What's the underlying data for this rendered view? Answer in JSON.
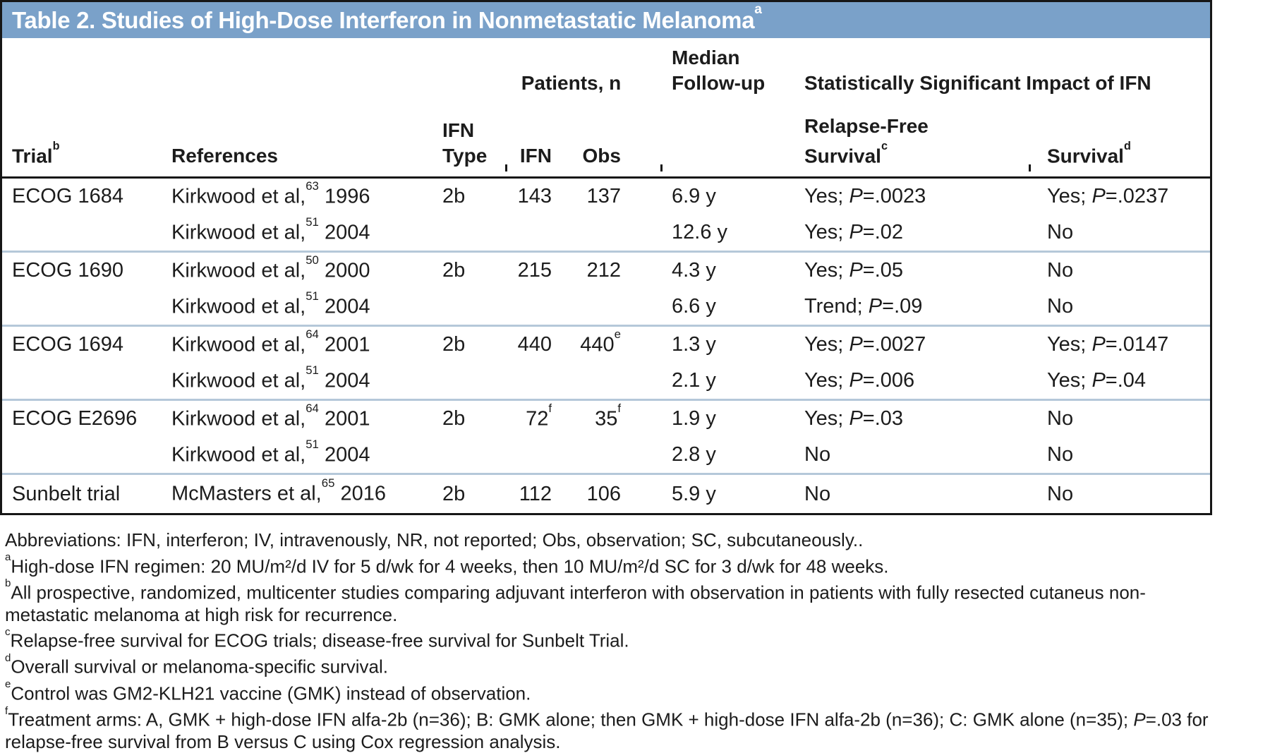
{
  "colors": {
    "title_bar_blue": "#7aa1c9",
    "border_black": "#161616",
    "row_divider_blue": "#b5c8d9",
    "text_ink": "#1c1c1c",
    "title_text": "#ffffff"
  },
  "title": {
    "text": "Table 2. Studies of High-Dose Interferon in Nonmetastatic Melanoma",
    "sup": "a"
  },
  "table": {
    "group_headers": {
      "patients": "Patients, n",
      "impact": "Statistically Significant Impact of IFN"
    },
    "columns": {
      "trial": {
        "label": "Trial",
        "sup": "b"
      },
      "references": {
        "label": "References"
      },
      "ifn_type": {
        "line1": "IFN",
        "line2": "Type"
      },
      "ifn_n": {
        "label": "IFN"
      },
      "obs_n": {
        "label": "Obs"
      },
      "median_followup": {
        "line1": "Median",
        "line2": "Follow-up"
      },
      "relapse_free": {
        "line1": "Relapse-Free",
        "line2": "Survival",
        "sup": "c"
      },
      "survival": {
        "label": "Survival",
        "sup": "d"
      }
    },
    "groups": [
      {
        "trial": "ECOG 1684",
        "entries": [
          {
            "reference": {
              "text": "Kirkwood et al,",
              "sup": "63",
              "year": "1996"
            },
            "ifn_type": "2b",
            "ifn_n": {
              "t": "143",
              "sup": ""
            },
            "obs_n": {
              "t": "137",
              "sup": ""
            },
            "followup": "6.9 y",
            "rfs": {
              "label": "Yes; ",
              "p": "P",
              "v": "=.0023"
            },
            "os": {
              "label": "Yes; ",
              "p": "P",
              "v": "=.0237"
            }
          },
          {
            "reference": {
              "text": "Kirkwood et al,",
              "sup": "51",
              "year": "2004"
            },
            "ifn_type": "",
            "ifn_n": null,
            "obs_n": null,
            "followup": "12.6 y",
            "rfs": {
              "label": "Yes; ",
              "p": "P",
              "v": "=.02"
            },
            "os": {
              "label": "No"
            }
          }
        ]
      },
      {
        "trial": "ECOG 1690",
        "entries": [
          {
            "reference": {
              "text": "Kirkwood et al,",
              "sup": "50",
              "year": "2000"
            },
            "ifn_type": "2b",
            "ifn_n": {
              "t": "215",
              "sup": ""
            },
            "obs_n": {
              "t": "212",
              "sup": ""
            },
            "followup": "4.3 y",
            "rfs": {
              "label": "Yes; ",
              "p": "P",
              "v": "=.05"
            },
            "os": {
              "label": "No"
            }
          },
          {
            "reference": {
              "text": "Kirkwood et al,",
              "sup": "51",
              "year": "2004"
            },
            "ifn_type": "",
            "ifn_n": null,
            "obs_n": null,
            "followup": "6.6 y",
            "rfs": {
              "label": "Trend; ",
              "p": "P",
              "v": "=.09"
            },
            "os": {
              "label": "No"
            }
          }
        ]
      },
      {
        "trial": "ECOG 1694",
        "entries": [
          {
            "reference": {
              "text": "Kirkwood et al,",
              "sup": "64",
              "year": "2001"
            },
            "ifn_type": "2b",
            "ifn_n": {
              "t": "440",
              "sup": ""
            },
            "obs_n": {
              "t": "440",
              "sup": "e"
            },
            "followup": "1.3 y",
            "rfs": {
              "label": "Yes; ",
              "p": "P",
              "v": "=.0027"
            },
            "os": {
              "label": "Yes; ",
              "p": "P",
              "v": "=.0147"
            }
          },
          {
            "reference": {
              "text": "Kirkwood et al,",
              "sup": "51",
              "year": "2004"
            },
            "ifn_type": "",
            "ifn_n": null,
            "obs_n": null,
            "followup": "2.1 y",
            "rfs": {
              "label": "Yes; ",
              "p": "P",
              "v": "=.006"
            },
            "os": {
              "label": "Yes; ",
              "p": "P",
              "v": "=.04"
            }
          }
        ]
      },
      {
        "trial": "ECOG E2696",
        "entries": [
          {
            "reference": {
              "text": "Kirkwood et al,",
              "sup": "64",
              "year": "2001"
            },
            "ifn_type": "2b",
            "ifn_n": {
              "t": "72",
              "sup": "f"
            },
            "obs_n": {
              "t": "35",
              "sup": "f"
            },
            "followup": "1.9 y",
            "rfs": {
              "label": "Yes; ",
              "p": "P",
              "v": "=.03"
            },
            "os": {
              "label": "No"
            }
          },
          {
            "reference": {
              "text": "Kirkwood et al,",
              "sup": "51",
              "year": "2004"
            },
            "ifn_type": "",
            "ifn_n": null,
            "obs_n": null,
            "followup": "2.8 y",
            "rfs": {
              "label": "No"
            },
            "os": {
              "label": "No"
            }
          }
        ]
      },
      {
        "trial": "Sunbelt trial",
        "entries": [
          {
            "reference": {
              "text": "McMasters et al,",
              "sup": "65",
              "year": "2016"
            },
            "ifn_type": "2b",
            "ifn_n": {
              "t": "112",
              "sup": ""
            },
            "obs_n": {
              "t": "106",
              "sup": ""
            },
            "followup": "5.9 y",
            "rfs": {
              "label": "No"
            },
            "os": {
              "label": "No"
            }
          }
        ]
      }
    ]
  },
  "footnotes": [
    [
      {
        "t": "Abbreviations: IFN, interferon; IV, intravenously, NR, not reported; Obs, observation; SC, subcutaneously.."
      }
    ],
    [
      {
        "sup": "a"
      },
      {
        "t": "High-dose IFN regimen: 20 MU/m²/d IV for 5 d/wk for 4 weeks, then 10 MU/m²/d SC for 3 d/wk for 48 weeks."
      }
    ],
    [
      {
        "sup": "b"
      },
      {
        "t": "All prospective, randomized, multicenter studies comparing adjuvant interferon with observation in patients with fully resected cutaneus non-"
      },
      {
        "br": true
      },
      {
        "t": "metastatic melanoma at high risk for recurrence."
      }
    ],
    [
      {
        "sup": "c"
      },
      {
        "t": "Relapse-free survival for ECOG trials; disease-free survival for Sunbelt Trial."
      }
    ],
    [
      {
        "sup": "d"
      },
      {
        "t": "Overall survival or melanoma-specific survival."
      }
    ],
    [
      {
        "sup": "e"
      },
      {
        "t": "Control was GM2-KLH21 vaccine (GMK) instead of observation."
      }
    ],
    [
      {
        "sup": "f"
      },
      {
        "t": "Treatment arms: A, GMK + high-dose IFN alfa-2b (n=36); B: GMK alone; then GMK + high-dose IFN alfa-2b (n=36); C: GMK alone (n=35); "
      },
      {
        "i": "P"
      },
      {
        "t": "=.03 for"
      },
      {
        "br": true
      },
      {
        "t": "relapse-free survival from B versus C using Cox regression analysis."
      }
    ]
  ]
}
